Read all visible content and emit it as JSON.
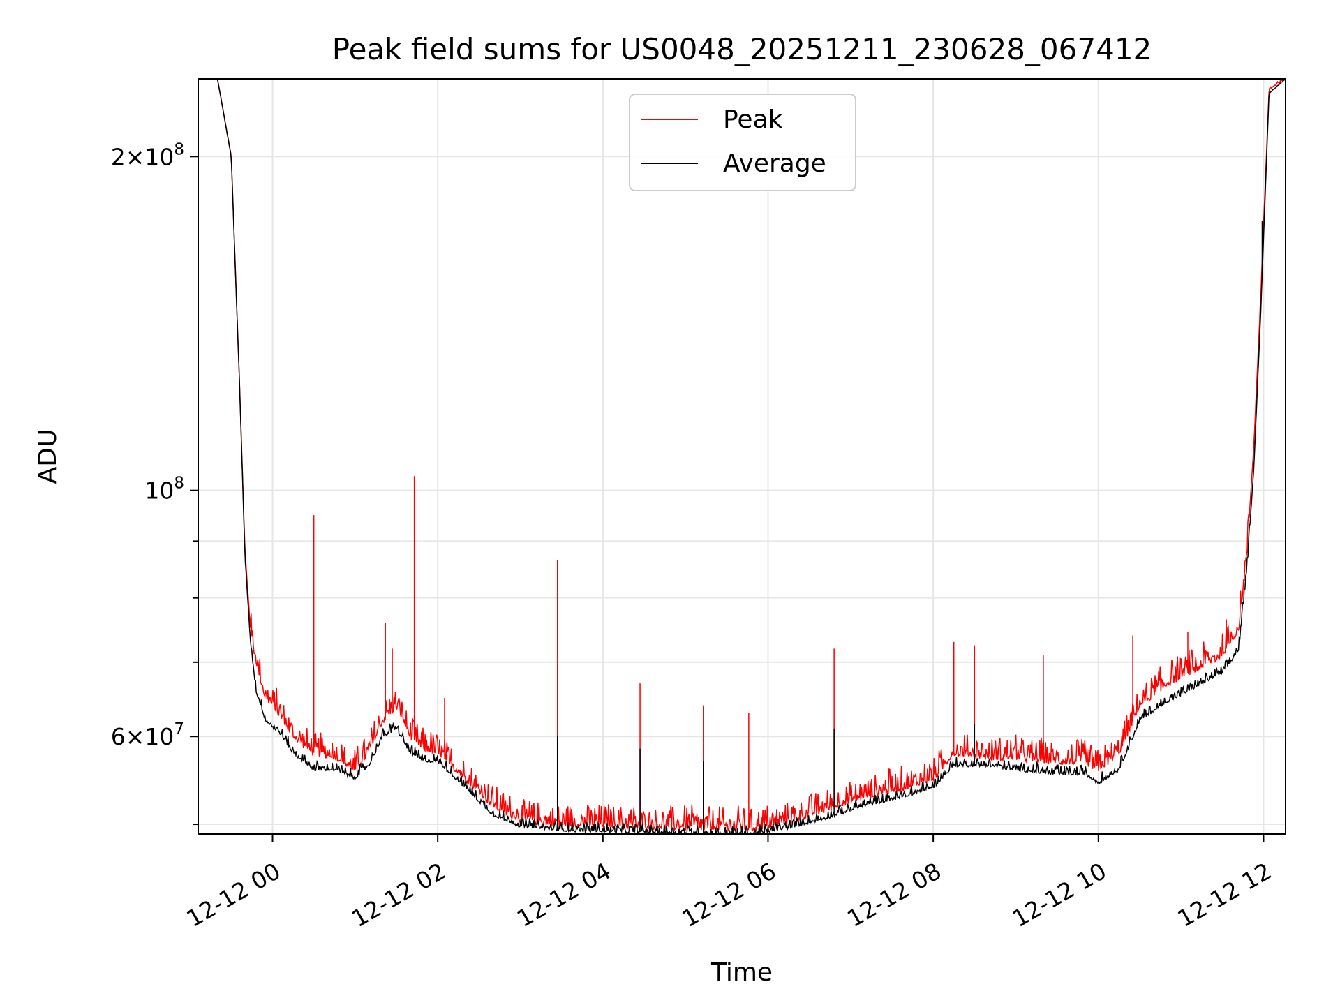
{
  "chart_data": {
    "type": "line",
    "title": "Peak field sums for US0048_20251211_230628_067412",
    "xlabel": "Time",
    "ylabel": "ADU",
    "yscale": "log",
    "xlim": [
      "2025-12-11 23:06",
      "2025-12-12 12:16"
    ],
    "ylim": [
      49000000,
      235000000
    ],
    "x_ticks": [
      "12-12 00",
      "12-12 02",
      "12-12 04",
      "12-12 06",
      "12-12 08",
      "12-12 10",
      "12-12 12"
    ],
    "x_tick_times": [
      "2025-12-12 00:00",
      "2025-12-12 02:00",
      "2025-12-12 04:00",
      "2025-12-12 06:00",
      "2025-12-12 08:00",
      "2025-12-12 10:00",
      "2025-12-12 12:00"
    ],
    "y_ticks_major": [
      {
        "value": 100000000,
        "base": "10",
        "exp": "8",
        "coef": ""
      },
      {
        "value": 200000000,
        "base": "10",
        "exp": "8",
        "coef": "2"
      },
      {
        "value": 60000000,
        "base": "10",
        "exp": "7",
        "coef": "6"
      }
    ],
    "y_ticks_minor": [
      50000000,
      70000000,
      80000000,
      90000000
    ],
    "grid": true,
    "legend": {
      "placement": "upper-center"
    },
    "series": [
      {
        "name": "Peak",
        "color": "#ff0000",
        "x": [
          "2025-12-11 23:06",
          "2025-12-11 23:20",
          "2025-12-11 23:30",
          "2025-12-11 23:36",
          "2025-12-11 23:40",
          "2025-12-11 23:44",
          "2025-12-11 23:48",
          "2025-12-11 23:55",
          "2025-12-12 00:05",
          "2025-12-12 00:15",
          "2025-12-12 00:30",
          "2025-12-12 00:45",
          "2025-12-12 01:00",
          "2025-12-12 01:10",
          "2025-12-12 01:20",
          "2025-12-12 01:30",
          "2025-12-12 01:40",
          "2025-12-12 01:50",
          "2025-12-12 02:00",
          "2025-12-12 02:20",
          "2025-12-12 02:40",
          "2025-12-12 03:00",
          "2025-12-12 03:30",
          "2025-12-12 04:00",
          "2025-12-12 04:30",
          "2025-12-12 05:00",
          "2025-12-12 05:30",
          "2025-12-12 05:50",
          "2025-12-12 06:20",
          "2025-12-12 06:50",
          "2025-12-12 07:10",
          "2025-12-12 07:40",
          "2025-12-12 08:00",
          "2025-12-12 08:15",
          "2025-12-12 08:40",
          "2025-12-12 09:00",
          "2025-12-12 09:30",
          "2025-12-12 09:50",
          "2025-12-12 10:00",
          "2025-12-12 10:15",
          "2025-12-12 10:30",
          "2025-12-12 10:50",
          "2025-12-12 11:10",
          "2025-12-12 11:30",
          "2025-12-12 11:36",
          "2025-12-12 11:42",
          "2025-12-12 11:48",
          "2025-12-12 11:53",
          "2025-12-12 11:58",
          "2025-12-12 12:04",
          "2025-12-12 12:16"
        ],
        "y": [
          235000000,
          235000000,
          200000000,
          125000000,
          88000000,
          75000000,
          70000000,
          65000000,
          63000000,
          60000000,
          58000000,
          57500000,
          56000000,
          58000000,
          62000000,
          64000000,
          60000000,
          58500000,
          58000000,
          55000000,
          52000000,
          50500000,
          50000000,
          50000000,
          49800000,
          49700000,
          49600000,
          49600000,
          50500000,
          52000000,
          53000000,
          54000000,
          55000000,
          58000000,
          57500000,
          57500000,
          57000000,
          57000000,
          56000000,
          58000000,
          64000000,
          67000000,
          69000000,
          71000000,
          73000000,
          75000000,
          88000000,
          110000000,
          150000000,
          230000000,
          235000000
        ]
      },
      {
        "name": "Average",
        "color": "#000000",
        "x": [
          "2025-12-11 23:06",
          "2025-12-11 23:20",
          "2025-12-11 23:30",
          "2025-12-11 23:36",
          "2025-12-11 23:40",
          "2025-12-11 23:44",
          "2025-12-11 23:48",
          "2025-12-11 23:55",
          "2025-12-12 00:05",
          "2025-12-12 00:15",
          "2025-12-12 00:30",
          "2025-12-12 00:45",
          "2025-12-12 01:00",
          "2025-12-12 01:10",
          "2025-12-12 01:20",
          "2025-12-12 01:30",
          "2025-12-12 01:40",
          "2025-12-12 01:50",
          "2025-12-12 02:00",
          "2025-12-12 02:20",
          "2025-12-12 02:40",
          "2025-12-12 03:00",
          "2025-12-12 03:30",
          "2025-12-12 04:00",
          "2025-12-12 04:30",
          "2025-12-12 05:00",
          "2025-12-12 05:30",
          "2025-12-12 05:50",
          "2025-12-12 06:20",
          "2025-12-12 06:50",
          "2025-12-12 07:10",
          "2025-12-12 07:40",
          "2025-12-12 08:00",
          "2025-12-12 08:15",
          "2025-12-12 08:40",
          "2025-12-12 09:00",
          "2025-12-12 09:30",
          "2025-12-12 09:50",
          "2025-12-12 10:00",
          "2025-12-12 10:15",
          "2025-12-12 10:30",
          "2025-12-12 10:50",
          "2025-12-12 11:10",
          "2025-12-12 11:30",
          "2025-12-12 11:36",
          "2025-12-12 11:42",
          "2025-12-12 11:48",
          "2025-12-12 11:53",
          "2025-12-12 11:58",
          "2025-12-12 12:04",
          "2025-12-12 12:16"
        ],
        "y": [
          235000000,
          235000000,
          200000000,
          125000000,
          87000000,
          73000000,
          66000000,
          62000000,
          60500000,
          58000000,
          56000000,
          56000000,
          55000000,
          56500000,
          60000000,
          61000000,
          58000000,
          57000000,
          57000000,
          54000000,
          51000000,
          49800000,
          49400000,
          49300000,
          49200000,
          49100000,
          49000000,
          49000000,
          49800000,
          51000000,
          52000000,
          53000000,
          54000000,
          56500000,
          56500000,
          56000000,
          55500000,
          55500000,
          54500000,
          56000000,
          62000000,
          64500000,
          66500000,
          68500000,
          70000000,
          72000000,
          85000000,
          105000000,
          145000000,
          228000000,
          235000000
        ]
      }
    ],
    "spikes": {
      "Peak": [
        [
          "2025-12-12 00:30",
          95000000
        ],
        [
          "2025-12-12 01:22",
          76000000
        ],
        [
          "2025-12-12 01:27",
          72000000
        ],
        [
          "2025-12-12 01:43",
          103000000
        ],
        [
          "2025-12-12 02:05",
          65000000
        ],
        [
          "2025-12-12 03:27",
          86500000
        ],
        [
          "2025-12-12 04:27",
          67000000
        ],
        [
          "2025-12-12 05:13",
          64000000
        ],
        [
          "2025-12-12 05:46",
          63000000
        ],
        [
          "2025-12-12 06:48",
          72000000
        ],
        [
          "2025-12-12 08:15",
          73000000
        ],
        [
          "2025-12-12 08:30",
          72500000
        ],
        [
          "2025-12-12 09:20",
          71000000
        ],
        [
          "2025-12-12 10:25",
          74000000
        ],
        [
          "2025-12-12 11:05",
          74500000
        ],
        [
          "2025-12-12 11:33",
          76500000
        ]
      ],
      "Average": [
        [
          "2025-12-12 03:27",
          60000000
        ],
        [
          "2025-12-12 04:27",
          58500000
        ],
        [
          "2025-12-12 05:13",
          57000000
        ],
        [
          "2025-12-12 06:48",
          61000000
        ],
        [
          "2025-12-12 08:30",
          61500000
        ],
        [
          "2025-12-12 11:59",
          175000000
        ]
      ]
    },
    "noise": {
      "Peak": 0.05,
      "Average": 0.02
    }
  }
}
